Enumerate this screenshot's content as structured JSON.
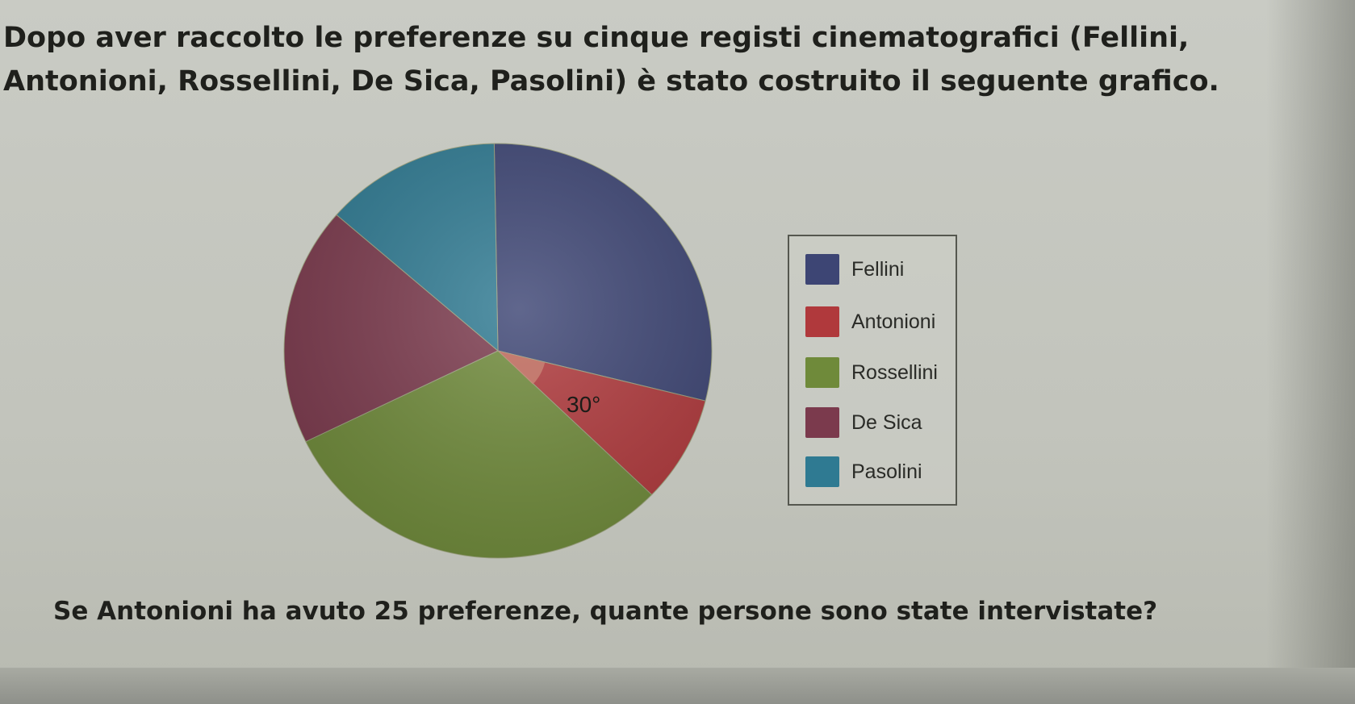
{
  "question": "Dopo aver raccolto le preferenze su cinque registi cinematografici (Fellini, Antonioni, Rossellini, De Sica, Pasolini) è stato costruito il seguente grafico.",
  "prompt": "Se Antonioni ha avuto 25 preferenze, quante persone sono state intervistate?",
  "chart_data": {
    "type": "pie",
    "categories": [
      "Fellini",
      "Antonioni",
      "Rossellini",
      "De Sica",
      "Pasolini"
    ],
    "values": [
      105,
      30,
      110,
      67,
      48
    ],
    "units": "degrees",
    "annotations": [
      {
        "category": "Antonioni",
        "text": "30°"
      }
    ],
    "legend": "right",
    "colors": [
      "#3d4574",
      "#b0393c",
      "#6f8a3a",
      "#7b3a4d",
      "#2f7a92"
    ]
  }
}
